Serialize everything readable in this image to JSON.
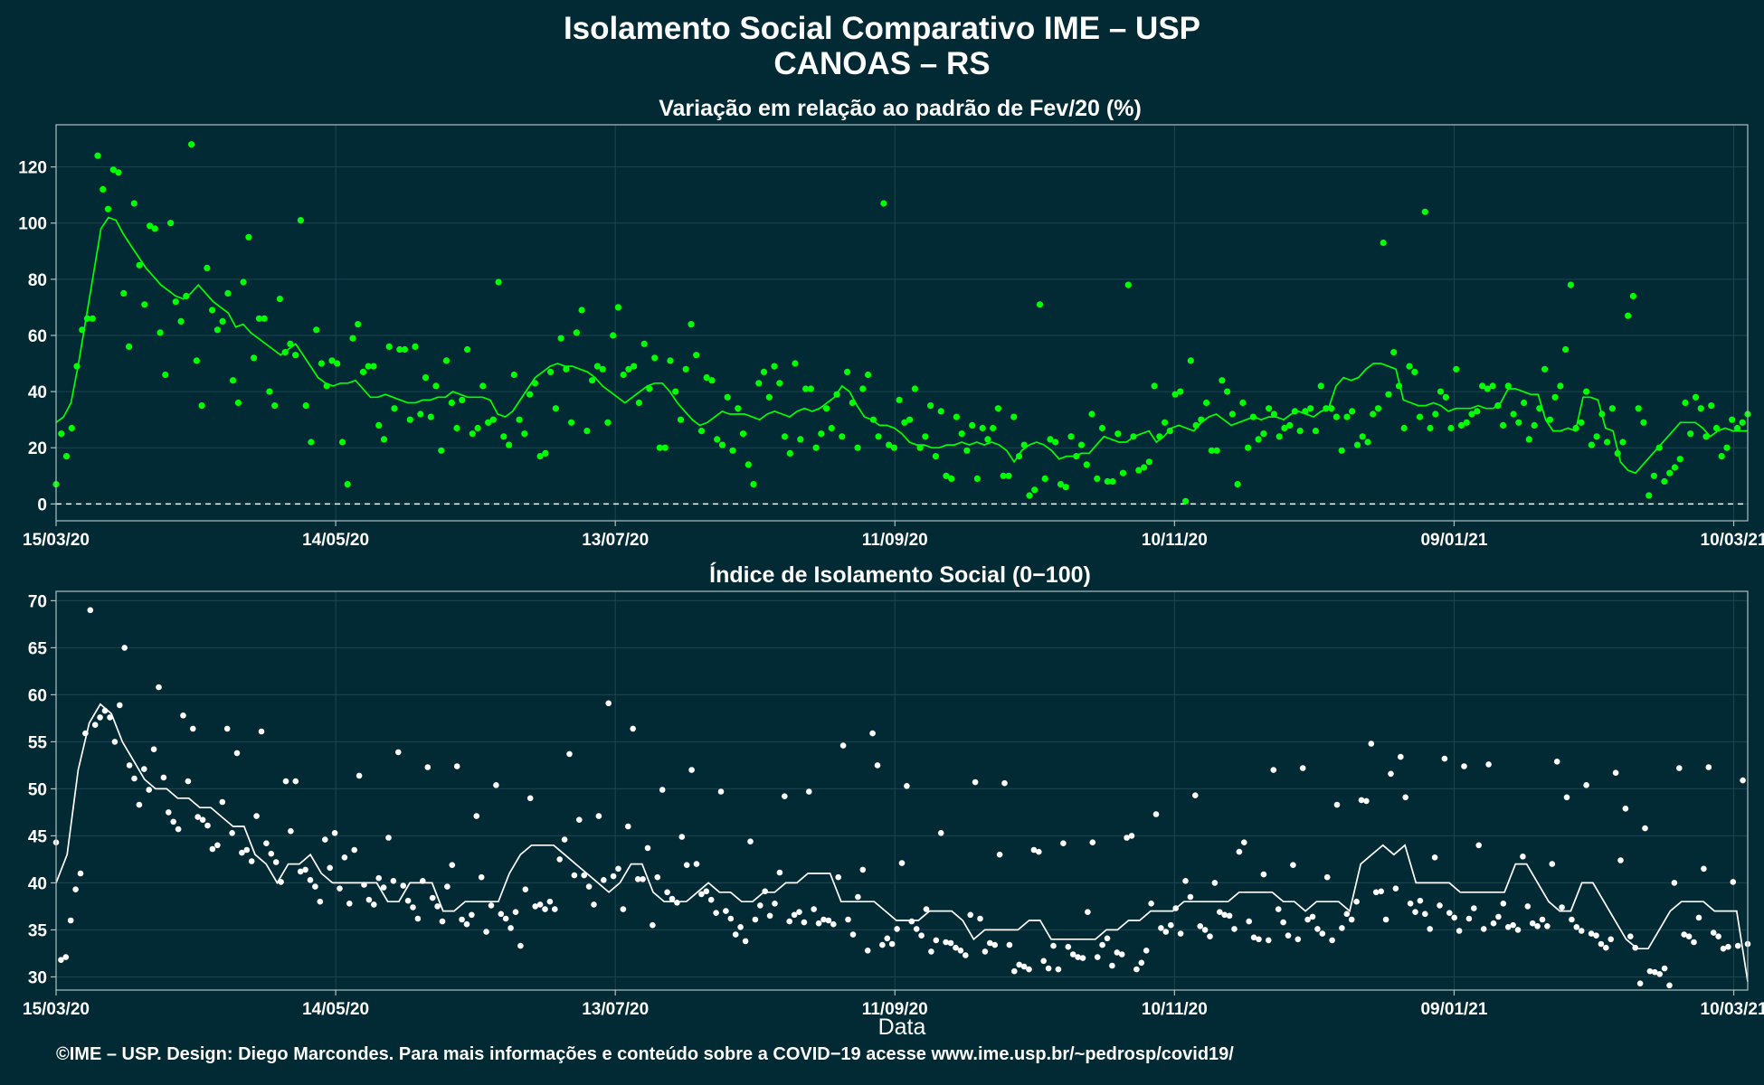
{
  "header": {
    "title_line1": "Isolamento Social Comparativo IME – USP",
    "title_line2": "CANOAS – RS"
  },
  "footer": {
    "caption": "©IME – USP. Design: Diego Marcondes. Para mais informações e conteúdo sobre a COVID−19 acesse www.ime.usp.br/~pedrosp/covid19/"
  },
  "colors": {
    "background": "#022a35",
    "panel1_series": "#00ff00",
    "panel2_series": "#ffffff",
    "grid": "#1d4550",
    "axis": "#aebfc3"
  },
  "chart_data": [
    {
      "type": "scatter",
      "title": "Variação em relação ao padrão de Fev/20 (%)",
      "xlabel": "",
      "ylabel": "",
      "x_ticks": [
        "15/03/20",
        "14/05/20",
        "13/07/20",
        "11/09/20",
        "10/11/20",
        "09/01/21",
        "10/03/21"
      ],
      "x_range": [
        "15/03/20",
        "13/03/21"
      ],
      "y_ticks": [
        0,
        20,
        40,
        60,
        80,
        100,
        120
      ],
      "ylim": [
        -6,
        135
      ],
      "reference_line": 0,
      "grid": true,
      "series": [
        {
          "style": "points",
          "values": [
            7,
            25,
            17,
            27,
            49,
            62,
            66,
            66,
            124,
            112,
            105,
            119,
            118,
            75,
            56,
            107,
            85,
            71,
            99,
            98,
            61,
            46,
            100,
            72,
            65,
            74,
            128,
            51,
            35,
            84,
            69,
            62,
            65,
            75,
            44,
            36,
            79,
            95,
            52,
            66,
            66,
            40,
            35,
            73,
            54,
            57,
            53,
            101,
            35,
            22,
            62,
            50,
            42,
            51,
            50,
            22,
            7,
            59,
            64,
            47,
            49,
            49,
            28,
            23,
            56,
            34,
            55,
            55,
            30,
            56,
            32,
            45,
            31,
            42,
            19,
            51,
            36,
            27,
            37,
            55,
            25,
            27,
            42,
            29,
            30,
            79,
            24,
            21,
            46,
            30,
            25,
            39,
            43,
            17,
            18,
            47,
            34,
            59,
            48,
            29,
            61,
            69,
            26,
            44,
            49,
            48,
            29,
            60,
            70,
            46,
            48,
            49,
            36,
            57,
            41,
            52,
            20,
            20,
            51,
            40,
            30,
            48,
            64,
            53,
            26,
            45,
            44,
            23,
            21,
            38,
            19,
            34,
            25,
            14,
            7,
            43,
            47,
            38,
            49,
            43,
            24,
            18,
            50,
            23,
            41,
            41,
            20,
            25,
            34,
            27,
            39,
            24,
            47,
            36,
            20,
            41,
            46,
            30,
            24,
            107,
            21,
            20,
            37,
            29,
            30,
            41,
            20,
            24,
            35,
            17,
            33,
            10,
            9,
            31,
            25,
            19,
            28,
            9,
            27,
            23,
            27,
            34,
            10,
            10,
            31,
            17,
            21,
            3,
            5,
            71,
            9,
            23,
            22,
            7,
            6,
            24,
            17,
            21,
            14,
            32,
            9,
            27,
            8,
            8,
            25,
            11,
            78,
            24,
            12,
            13,
            15,
            42,
            24,
            29,
            26,
            39,
            40,
            1,
            51,
            28,
            30,
            36,
            19,
            19,
            44,
            40,
            32,
            7,
            36,
            20,
            31,
            23,
            25,
            34,
            32,
            24,
            27,
            28,
            33,
            26,
            33,
            34,
            26,
            42,
            34,
            34,
            31,
            19,
            31,
            33,
            21,
            24,
            22,
            32,
            34,
            93,
            39,
            54,
            42,
            27,
            49,
            47,
            31,
            104,
            27,
            32,
            40,
            38,
            27,
            48,
            28,
            29,
            32,
            33,
            42,
            41,
            42,
            35,
            28,
            42,
            32,
            29,
            36,
            23,
            28,
            34,
            48,
            30,
            38,
            42,
            55,
            78,
            27,
            29,
            40,
            21,
            24,
            32,
            22,
            34,
            18,
            22,
            67,
            74,
            34,
            29,
            3,
            10,
            20,
            8,
            11,
            13,
            16,
            36,
            25,
            38,
            34,
            24,
            35,
            27,
            17,
            20,
            30,
            27,
            29,
            32
          ]
        },
        {
          "style": "line",
          "values": [
            29,
            31,
            36,
            50,
            66,
            82,
            98,
            102,
            101,
            96,
            92,
            88,
            84,
            81,
            78,
            76,
            74,
            73,
            75,
            78,
            75,
            72,
            70,
            68,
            63,
            64,
            61,
            59,
            57,
            55,
            53,
            55,
            57,
            53,
            49,
            45,
            43,
            42,
            43,
            43,
            44,
            41,
            38,
            38,
            39,
            38,
            37,
            36,
            36,
            37,
            37,
            38,
            38,
            40,
            39,
            38,
            38,
            38,
            37,
            32,
            31,
            33,
            37,
            41,
            45,
            47,
            49,
            50,
            49,
            49,
            48,
            47,
            45,
            42,
            40,
            38,
            36,
            38,
            40,
            42,
            43,
            43,
            40,
            36,
            33,
            30,
            28,
            29,
            31,
            33,
            32,
            32,
            32,
            31,
            30,
            32,
            33,
            32,
            31,
            33,
            34,
            33,
            34,
            36,
            38,
            42,
            40,
            35,
            31,
            30,
            28,
            28,
            27,
            25,
            22,
            21,
            21,
            20,
            20,
            21,
            21,
            22,
            21,
            22,
            21,
            22,
            21,
            19,
            15,
            19,
            21,
            22,
            21,
            19,
            16,
            17,
            17,
            18,
            18,
            21,
            24,
            23,
            22,
            22,
            24,
            25,
            26,
            22,
            24,
            27,
            28,
            27,
            26,
            29,
            31,
            32,
            30,
            28,
            29,
            30,
            31,
            30,
            31,
            31,
            30,
            32,
            33,
            32,
            31,
            33,
            34,
            42,
            45,
            44,
            45,
            48,
            50,
            50,
            49,
            48,
            37,
            36,
            35,
            35,
            36,
            35,
            33,
            34,
            34,
            34,
            35,
            34,
            34,
            36,
            41,
            41,
            40,
            39,
            39,
            30,
            26,
            26,
            27,
            26,
            38,
            38,
            37,
            27,
            26,
            15,
            12,
            11,
            14,
            17,
            20,
            23,
            26,
            29,
            29,
            29,
            27,
            24,
            26,
            27,
            26,
            26,
            26
          ]
        }
      ]
    },
    {
      "type": "scatter",
      "title": "Índice de Isolamento Social (0−100)",
      "xlabel": "Data",
      "ylabel": "",
      "x_ticks": [
        "15/03/20",
        "14/05/20",
        "13/07/20",
        "11/09/20",
        "10/11/20",
        "09/01/21",
        "10/03/21"
      ],
      "x_range": [
        "15/03/20",
        "13/03/21"
      ],
      "y_ticks": [
        30,
        35,
        40,
        45,
        50,
        55,
        60,
        65,
        70
      ],
      "ylim": [
        28.6,
        71
      ],
      "grid": true,
      "series": [
        {
          "style": "points",
          "values": [
            44.3,
            31.8,
            32.1,
            36,
            39.3,
            41,
            55.9,
            69,
            56.8,
            57.6,
            58.3,
            57.6,
            55,
            58.9,
            65,
            52.5,
            51.1,
            48.3,
            52.1,
            49.9,
            54.2,
            60.8,
            51.2,
            47.5,
            46.5,
            45.7,
            57.8,
            50.8,
            56.4,
            47,
            46.7,
            46.1,
            43.6,
            44,
            48.6,
            56.4,
            45.3,
            53.8,
            43.2,
            43.5,
            42.3,
            47.1,
            56.1,
            44.2,
            43.1,
            42.2,
            40.1,
            50.8,
            45.5,
            50.8,
            41.2,
            41.4,
            40.3,
            39.6,
            38,
            44.6,
            41.6,
            45.3,
            39.4,
            42.7,
            37.8,
            43.5,
            51.4,
            39.8,
            38.2,
            37.7,
            40.5,
            39.5,
            44.8,
            40.2,
            53.9,
            39.7,
            38.1,
            37.4,
            36.2,
            40.2,
            52.3,
            38.4,
            37.5,
            35.9,
            39.6,
            41.9,
            52.4,
            36.1,
            35.6,
            36.6,
            47.1,
            40.6,
            34.8,
            37.6,
            50.4,
            36.7,
            36.2,
            35.2,
            36.9,
            33.3,
            39.3,
            49,
            37.5,
            37.7,
            37.2,
            38,
            37.2,
            42.5,
            44.6,
            53.7,
            40.8,
            46.7,
            40.8,
            39.6,
            37.7,
            47.1,
            40.3,
            59.1,
            40.7,
            41.5,
            37.2,
            46,
            56.4,
            40.4,
            40.4,
            43.7,
            35.5,
            40.6,
            49.9,
            39,
            38.3,
            37.9,
            44.9,
            41.9,
            52,
            42,
            38.8,
            39.1,
            38.2,
            36.8,
            49.7,
            37,
            36.2,
            34.5,
            35.3,
            33.8,
            44.4,
            36.1,
            37.6,
            39.1,
            36.5,
            37.8,
            41.1,
            49.2,
            35.9,
            36.6,
            36.9,
            35.8,
            49.7,
            37.2,
            35.7,
            36.1,
            36,
            35.6,
            40.6,
            54.6,
            36.1,
            34.5,
            38.5,
            41.4,
            32.8,
            55.9,
            52.5,
            33.4,
            34.1,
            33.5,
            35.1,
            42.1,
            50.3,
            35.9,
            35.1,
            34.4,
            37.2,
            32.7,
            33.9,
            45.3,
            33.7,
            33.6,
            33.1,
            32.8,
            32.3,
            36.6,
            50.7,
            36.2,
            32.7,
            33.6,
            33.4,
            43,
            50.6,
            33.4,
            30.6,
            31.3,
            31.1,
            30.8,
            43.5,
            43.3,
            31.7,
            30.9,
            33.3,
            30.8,
            44.2,
            33.2,
            32.4,
            32.1,
            32,
            36.9,
            44.3,
            32.1,
            33.4,
            34.1,
            31.2,
            32.6,
            32.4,
            44.8,
            45,
            30.8,
            31.5,
            32.8,
            37.8,
            47.3,
            35.2,
            34.8,
            35.5,
            37.3,
            34.6,
            40.2,
            38.5,
            49.3,
            35.4,
            35,
            34.3,
            40,
            36.9,
            36.6,
            36.5,
            35.1,
            43.3,
            44.3,
            35.9,
            34.2,
            34,
            40.9,
            33.9,
            52,
            37.2,
            35.8,
            34.4,
            41.9,
            34,
            52.2,
            36.1,
            36.4,
            35.1,
            34.6,
            40.6,
            33.9,
            48.3,
            35.2,
            36.7,
            36.1,
            38,
            48.8,
            48.7,
            54.8,
            39,
            39.1,
            36.1,
            51.6,
            39.4,
            53.4,
            49.1,
            37.8,
            36.9,
            38.1,
            36.7,
            35.1,
            42.7,
            37.6,
            53.2,
            36.8,
            36.3,
            34.9,
            52.4,
            36.2,
            37.3,
            44,
            35.1,
            52.6,
            35.7,
            36.4,
            37.8,
            35.3,
            35.5,
            35,
            42.8,
            37.5,
            35.7,
            35.4,
            36.1,
            35.4,
            42,
            52.9,
            37.4,
            49.1,
            36.1,
            35.3,
            34.9,
            50.4,
            34.6,
            34.4,
            33.5,
            33.1,
            34,
            51.7,
            42.4,
            47.9,
            34.3,
            33.1,
            29.3,
            45.8,
            30.6,
            30.5,
            30.3,
            30.9,
            29.1,
            40,
            52.2,
            34.5,
            34.3,
            33.7,
            36.3,
            41.5,
            52.3,
            34.7,
            34.3,
            33,
            33.2,
            40.1,
            33.3,
            50.9,
            33.5
          ]
        },
        {
          "style": "line",
          "values": [
            40,
            43,
            52,
            57,
            59,
            58,
            55,
            53,
            51,
            50,
            50,
            49,
            49,
            48,
            48,
            47,
            46,
            46,
            43,
            42,
            40,
            42,
            42,
            43,
            41,
            40,
            40,
            40,
            40,
            40,
            38,
            38,
            40,
            40,
            40,
            37,
            37,
            38,
            38,
            38,
            38,
            41,
            43,
            44,
            44,
            44,
            43,
            42,
            41,
            40,
            39,
            40,
            42,
            42,
            39,
            38,
            38,
            38,
            39,
            40,
            39,
            39,
            38,
            38,
            39,
            39,
            40,
            40,
            41,
            41,
            41,
            38,
            38,
            38,
            38,
            37,
            36,
            36,
            36,
            37,
            37,
            37,
            36,
            34,
            35,
            35,
            35,
            35,
            36,
            36,
            34,
            34,
            34,
            34,
            34,
            35,
            35,
            36,
            36,
            37,
            37,
            37,
            38,
            38,
            38,
            38,
            38,
            39,
            39,
            39,
            39,
            38,
            38,
            37,
            38,
            38,
            38,
            37,
            42,
            43,
            44,
            43,
            44,
            40,
            40,
            40,
            40,
            39,
            39,
            39,
            39,
            39,
            42,
            42,
            40,
            38,
            37,
            37,
            40,
            40,
            38,
            36,
            34,
            33,
            33,
            35,
            37,
            38,
            38,
            38,
            37,
            37,
            37,
            29.5
          ]
        }
      ]
    }
  ]
}
